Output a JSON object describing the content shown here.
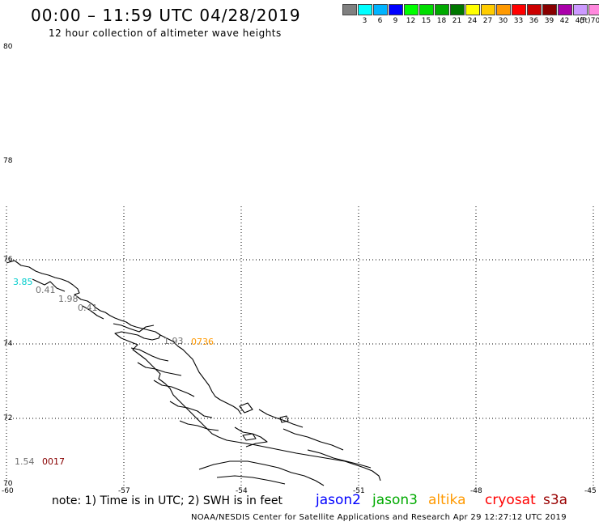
{
  "header": {
    "title": "00:00 – 11:59 UTC 04/28/2019",
    "subtitle": "12 hour collection of altimeter wave heights"
  },
  "color_scale": {
    "unit": "(ft)",
    "bins": [
      {
        "label": "",
        "color": "#808080"
      },
      {
        "label": "3",
        "color": "#00ffff"
      },
      {
        "label": "6",
        "color": "#00b4ff"
      },
      {
        "label": "9",
        "color": "#0000ff"
      },
      {
        "label": "12",
        "color": "#00ff00"
      },
      {
        "label": "15",
        "color": "#00dd00"
      },
      {
        "label": "18",
        "color": "#00aa00"
      },
      {
        "label": "21",
        "color": "#007700"
      },
      {
        "label": "24",
        "color": "#ffff00"
      },
      {
        "label": "27",
        "color": "#ffcc00"
      },
      {
        "label": "30",
        "color": "#ff9900"
      },
      {
        "label": "33",
        "color": "#ff0000"
      },
      {
        "label": "36",
        "color": "#cc0000"
      },
      {
        "label": "39",
        "color": "#880000"
      },
      {
        "label": "42",
        "color": "#aa00aa"
      },
      {
        "label": "45",
        "color": "#cc99ff"
      },
      {
        "label": "70",
        "color": "#ff88dd"
      },
      {
        "label": "",
        "color": "#000000"
      }
    ]
  },
  "map": {
    "lat_labels": [
      "80",
      "78",
      "76",
      "74",
      "72",
      "70"
    ],
    "lon_labels": [
      "-60",
      "-57",
      "-54",
      "-51",
      "-48",
      "-45"
    ]
  },
  "observations": [
    {
      "text": "3.85",
      "color": "#00cccc"
    },
    {
      "text": "0.41",
      "color": "#707070"
    },
    {
      "text": "1.98",
      "color": "#707070"
    },
    {
      "text": "0.41",
      "color": "#707070"
    },
    {
      "text": "1.93",
      "color": "#707070"
    },
    {
      "text": "0736",
      "color": "#ff9900"
    },
    {
      "text": "1.54",
      "color": "#707070"
    },
    {
      "text": "0017",
      "color": "#880000"
    }
  ],
  "footer": {
    "note": "note: 1) Time is in UTC; 2) SWH is in feet",
    "satellites": [
      {
        "name": "jason2",
        "color": "#0000ff"
      },
      {
        "name": "jason3",
        "color": "#00aa00"
      },
      {
        "name": "altika",
        "color": "#ff9900"
      },
      {
        "name": "cryosat",
        "color": "#ff0000"
      },
      {
        "name": "s3a",
        "color": "#990000"
      }
    ],
    "credit": "NOAA/NESDIS Center for Satellite Applications and Research   Apr 29 12:27:12 UTC 2019"
  }
}
